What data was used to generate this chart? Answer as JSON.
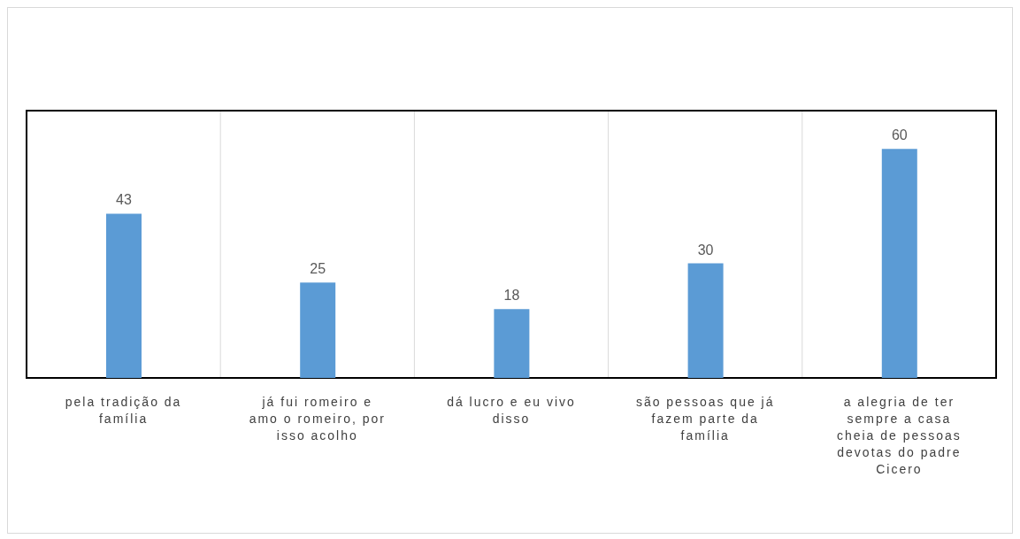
{
  "chart_data": {
    "type": "bar",
    "categories": [
      "pela tradição da família",
      "já fui romeiro e amo o romeiro, por isso acolho",
      "dá lucro e eu vivo disso",
      "são pessoas que já fazem parte da família",
      "a alegria de ter sempre a casa cheia de pessoas devotas do padre Cicero"
    ],
    "values": [
      43,
      25,
      18,
      30,
      60
    ],
    "color": "#5b9bd5",
    "data_labels": true,
    "grid": "x",
    "tick_labels": "x"
  }
}
